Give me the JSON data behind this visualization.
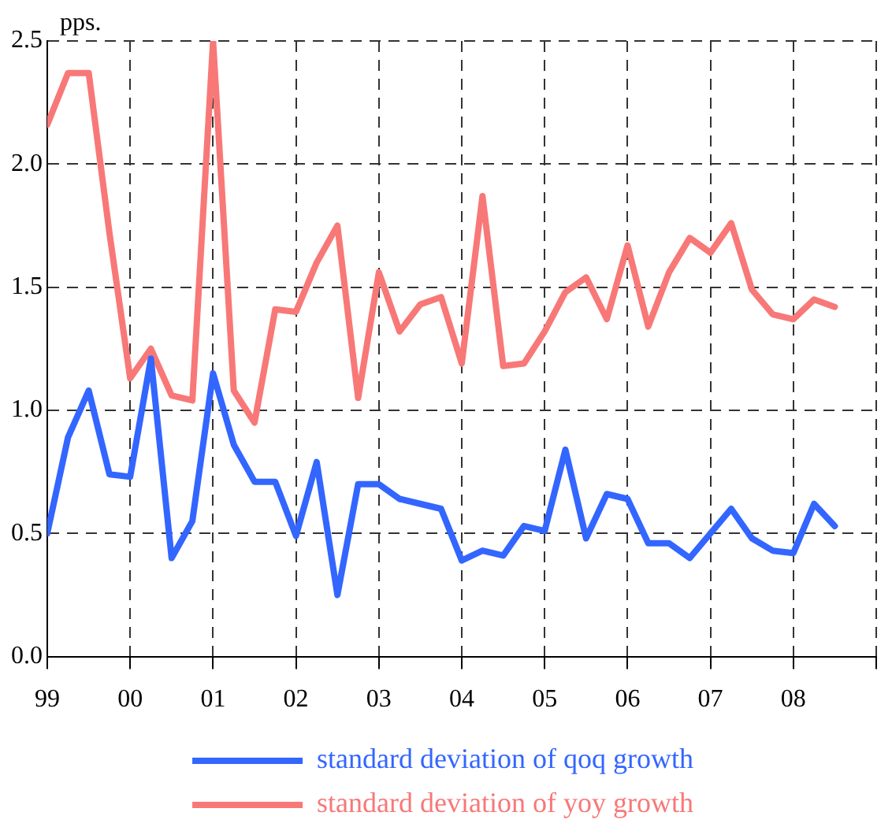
{
  "chart_data": {
    "type": "line",
    "ylabel": "pps.",
    "x": [
      1999,
      1999.25,
      1999.5,
      1999.75,
      2000,
      2000.25,
      2000.5,
      2000.75,
      2001,
      2001.25,
      2001.5,
      2001.75,
      2002,
      2002.25,
      2002.5,
      2002.75,
      2003,
      2003.25,
      2003.5,
      2003.75,
      2004,
      2004.25,
      2004.5,
      2004.75,
      2005,
      2005.25,
      2005.5,
      2005.75,
      2006,
      2006.25,
      2006.5,
      2006.75,
      2007,
      2007.25,
      2007.5,
      2007.75,
      2008,
      2008.25,
      2008.5
    ],
    "series": [
      {
        "name": "standard deviation of qoq growth",
        "color": "#3366ff",
        "values": [
          0.5,
          0.89,
          1.08,
          0.74,
          0.73,
          1.21,
          0.4,
          0.55,
          1.15,
          0.86,
          0.71,
          0.71,
          0.49,
          0.79,
          0.25,
          0.7,
          0.7,
          0.64,
          0.62,
          0.6,
          0.39,
          0.43,
          0.41,
          0.53,
          0.51,
          0.84,
          0.48,
          0.66,
          0.64,
          0.46,
          0.46,
          0.4,
          0.5,
          0.6,
          0.48,
          0.43,
          0.42,
          0.62,
          0.53
        ]
      },
      {
        "name": "standard deviation of yoy growth",
        "color": "#f87878",
        "values": [
          2.16,
          2.37,
          2.37,
          1.72,
          1.13,
          1.25,
          1.06,
          1.04,
          2.5,
          1.08,
          0.95,
          1.41,
          1.4,
          1.6,
          1.75,
          1.05,
          1.56,
          1.32,
          1.43,
          1.46,
          1.19,
          1.87,
          1.18,
          1.19,
          1.32,
          1.48,
          1.54,
          1.37,
          1.67,
          1.34,
          1.56,
          1.7,
          1.64,
          1.76,
          1.49,
          1.39,
          1.37,
          1.45,
          1.42
        ]
      }
    ],
    "xlim": [
      1999,
      2009
    ],
    "xticks": [
      {
        "value": 1999,
        "label": "99"
      },
      {
        "value": 2000,
        "label": "00"
      },
      {
        "value": 2001,
        "label": "01"
      },
      {
        "value": 2002,
        "label": "02"
      },
      {
        "value": 2003,
        "label": "03"
      },
      {
        "value": 2004,
        "label": "04"
      },
      {
        "value": 2005,
        "label": "05"
      },
      {
        "value": 2006,
        "label": "06"
      },
      {
        "value": 2007,
        "label": "07"
      },
      {
        "value": 2008,
        "label": "08"
      },
      {
        "value": 2009,
        "label": null
      }
    ],
    "ylim": [
      0,
      2.5
    ],
    "yticks": [
      {
        "value": 0,
        "label": "0.0"
      },
      {
        "value": 0.5,
        "label": "0.5"
      },
      {
        "value": 1,
        "label": "1.0"
      },
      {
        "value": 1.5,
        "label": "1.5"
      },
      {
        "value": 2,
        "label": "2.0"
      },
      {
        "value": 2.5,
        "label": "2.5"
      }
    ],
    "grid": true,
    "legend": "bottom",
    "marker": "none",
    "line_style": "solid"
  }
}
